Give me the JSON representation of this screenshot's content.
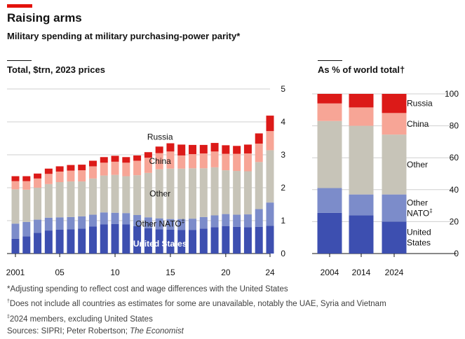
{
  "header": {
    "title": "Raising arms",
    "subtitle": "Military spending at military purchasing-power parity*"
  },
  "colors": {
    "accent": "#e3120b",
    "united_states": "#3d4fb0",
    "other_nato": "#7c8cca",
    "other": "#c7c4b8",
    "china": "#f7a596",
    "russia": "#dc1a18",
    "grid": "#cfcfcf",
    "label_on_dark": "#ffffff",
    "label_on_light": "#121212"
  },
  "chart_data": [
    {
      "type": "bar",
      "stacked": true,
      "title": "Total, $trn, 2023 prices",
      "categories": [
        "2001",
        "2002",
        "2003",
        "2004",
        "2005",
        "2006",
        "2007",
        "2008",
        "2009",
        "2010",
        "2011",
        "2012",
        "2013",
        "2014",
        "2015",
        "2016",
        "2017",
        "2018",
        "2019",
        "2020",
        "2021",
        "2022",
        "2023",
        "2024"
      ],
      "x_tick_labels": [
        {
          "index": 0,
          "label": "2001"
        },
        {
          "index": 4,
          "label": "05"
        },
        {
          "index": 9,
          "label": "10"
        },
        {
          "index": 14,
          "label": "15"
        },
        {
          "index": 19,
          "label": "20"
        },
        {
          "index": 23,
          "label": "24"
        }
      ],
      "ylim": [
        0,
        5
      ],
      "y_ticks": [
        0,
        1,
        2,
        3,
        4,
        5
      ],
      "series": [
        {
          "name": "United States",
          "color_key": "united_states",
          "label_color_key": "label_on_dark",
          "values": [
            0.45,
            0.52,
            0.63,
            0.7,
            0.73,
            0.74,
            0.76,
            0.82,
            0.89,
            0.9,
            0.89,
            0.83,
            0.77,
            0.74,
            0.73,
            0.72,
            0.72,
            0.76,
            0.8,
            0.83,
            0.81,
            0.8,
            0.81,
            0.84
          ]
        },
        {
          "name": "Other NATO",
          "color_key": "other_nato",
          "label_color_key": "label_on_light",
          "values": [
            0.46,
            0.44,
            0.4,
            0.39,
            0.37,
            0.37,
            0.37,
            0.36,
            0.36,
            0.34,
            0.34,
            0.34,
            0.33,
            0.33,
            0.32,
            0.33,
            0.34,
            0.35,
            0.36,
            0.37,
            0.37,
            0.39,
            0.54,
            0.71
          ]
        },
        {
          "name": "Other",
          "color_key": "other",
          "label_color_key": "label_on_light",
          "values": [
            1.04,
            0.98,
            0.97,
            1.02,
            1.07,
            1.08,
            1.06,
            1.1,
            1.12,
            1.15,
            1.12,
            1.21,
            1.35,
            1.49,
            1.53,
            1.53,
            1.53,
            1.48,
            1.46,
            1.33,
            1.33,
            1.31,
            1.43,
            1.59
          ]
        },
        {
          "name": "China",
          "color_key": "china",
          "label_color_key": "label_on_light",
          "values": [
            0.25,
            0.26,
            0.28,
            0.31,
            0.32,
            0.33,
            0.34,
            0.37,
            0.39,
            0.4,
            0.41,
            0.44,
            0.46,
            0.49,
            0.52,
            0.4,
            0.43,
            0.45,
            0.48,
            0.5,
            0.52,
            0.54,
            0.56,
            0.58
          ]
        },
        {
          "name": "Russia",
          "color_key": "russia",
          "label_color_key": "label_on_light",
          "values": [
            0.15,
            0.15,
            0.15,
            0.16,
            0.16,
            0.17,
            0.17,
            0.17,
            0.17,
            0.18,
            0.17,
            0.16,
            0.17,
            0.2,
            0.25,
            0.33,
            0.28,
            0.26,
            0.26,
            0.26,
            0.24,
            0.27,
            0.31,
            0.47
          ]
        }
      ],
      "series_labels": [
        {
          "series": "Russia",
          "text": "Russia",
          "at_index": 13
        },
        {
          "series": "China",
          "text": "China",
          "at_index": 13
        },
        {
          "series": "Other",
          "text": "Other",
          "at_index": 13
        },
        {
          "series": "Other NATO",
          "text": "Other NATO‡",
          "at_index": 13
        },
        {
          "series": "United States",
          "text": "United States",
          "at_index": 13
        }
      ]
    },
    {
      "type": "bar",
      "stacked": true,
      "title": "As % of world total†",
      "categories": [
        "2004",
        "2014",
        "2024"
      ],
      "ylim": [
        0,
        100
      ],
      "y_ticks": [
        0,
        20,
        40,
        60,
        80,
        100
      ],
      "series": [
        {
          "name": "United States",
          "color_key": "united_states",
          "values": [
            25.5,
            24.0,
            20.0
          ]
        },
        {
          "name": "Other NATO",
          "color_key": "other_nato",
          "values": [
            15.5,
            13.0,
            17.0
          ]
        },
        {
          "name": "Other",
          "color_key": "other",
          "values": [
            42.0,
            43.0,
            37.5
          ]
        },
        {
          "name": "China",
          "color_key": "china",
          "values": [
            11.0,
            11.5,
            13.5
          ]
        },
        {
          "name": "Russia",
          "color_key": "russia",
          "values": [
            6.0,
            8.5,
            12.0
          ]
        }
      ],
      "legend_labels": [
        {
          "series": "Russia",
          "lines": [
            "Russia"
          ]
        },
        {
          "series": "China",
          "lines": [
            "China"
          ]
        },
        {
          "series": "Other",
          "lines": [
            "Other"
          ]
        },
        {
          "series": "Other NATO",
          "lines": [
            "Other",
            "NATO‡"
          ]
        },
        {
          "series": "United States",
          "lines": [
            "United",
            "States"
          ]
        }
      ]
    }
  ],
  "footnotes": [
    {
      "mark": "*",
      "text": "Adjusting spending to reflect cost and wage differences with the United States"
    },
    {
      "mark": "†",
      "text": "Does not include all countries as estimates for some are unavailable, notably the UAE, Syria and Vietnam"
    },
    {
      "mark": "‡",
      "text": "2024 members, excluding United States"
    }
  ],
  "sources": {
    "prefix": "Sources: SIPRI; Peter Robertson; ",
    "italic": "The Economist"
  }
}
